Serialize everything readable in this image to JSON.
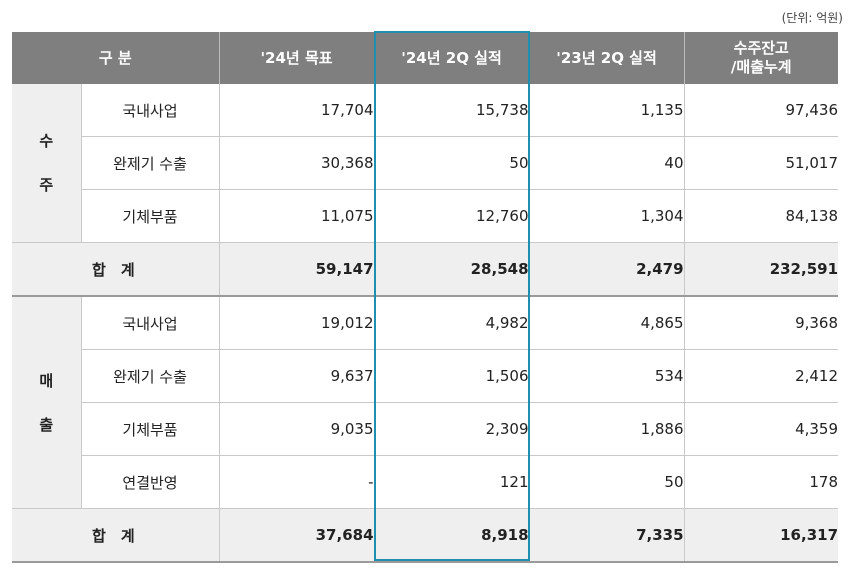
{
  "unit_note": "(단위: 억원)",
  "headers": {
    "category": "구 분",
    "col1": "'24년 목표",
    "col2": "'24년 2Q 실적",
    "col3": "'23년 2Q 실적",
    "col4_line1": "수주잔고",
    "col4_line2": "/매출누계"
  },
  "orders": {
    "group_char1": "수",
    "group_char2": "주",
    "rows": [
      {
        "label": "국내사업",
        "v1": "17,704",
        "v2": "15,738",
        "v3": "1,135",
        "v4": "97,436"
      },
      {
        "label": "완제기 수출",
        "v1": "30,368",
        "v2": "50",
        "v3": "40",
        "v4": "51,017"
      },
      {
        "label": "기체부품",
        "v1": "11,075",
        "v2": "12,760",
        "v3": "1,304",
        "v4": "84,138"
      }
    ],
    "total": {
      "label_a": "합",
      "label_b": "계",
      "v1": "59,147",
      "v2": "28,548",
      "v3": "2,479",
      "v4": "232,591"
    }
  },
  "sales": {
    "group_char1": "매",
    "group_char2": "출",
    "rows": [
      {
        "label": "국내사업",
        "v1": "19,012",
        "v2": "4,982",
        "v3": "4,865",
        "v4": "9,368"
      },
      {
        "label": "완제기 수출",
        "v1": "9,637",
        "v2": "1,506",
        "v3": "534",
        "v4": "2,412"
      },
      {
        "label": "기체부품",
        "v1": "9,035",
        "v2": "2,309",
        "v3": "1,886",
        "v4": "4,359"
      },
      {
        "label": "연결반영",
        "v1": "-",
        "v2": "121",
        "v3": "50",
        "v4": "178"
      }
    ],
    "total": {
      "label_a": "합",
      "label_b": "계",
      "v1": "37,684",
      "v2": "8,918",
      "v3": "7,335",
      "v4": "16,317"
    }
  },
  "colors": {
    "header_bg": "#7f7f7f",
    "total_bg": "#efefef",
    "highlight_border": "#1f8fb0"
  }
}
